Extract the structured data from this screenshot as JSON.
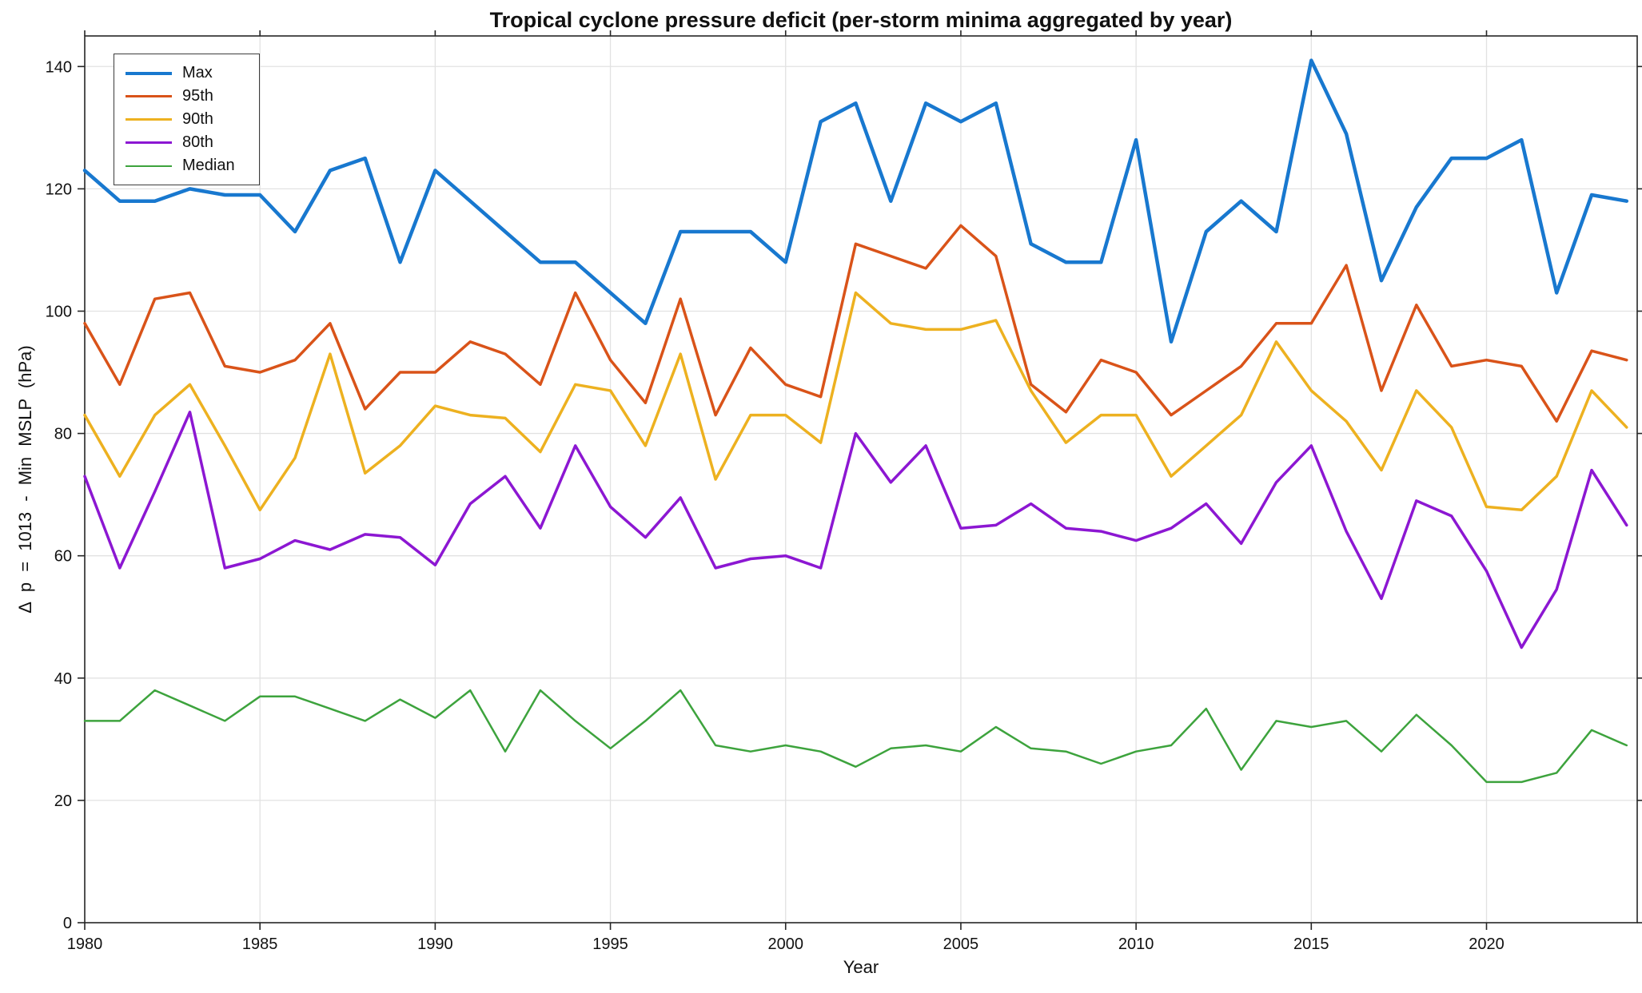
{
  "chart_data": {
    "type": "line",
    "title": "Tropical cyclone pressure deficit (per-storm minima aggregated by year)",
    "xlabel": "Year",
    "ylabel": "Δ p = 1013 - Min MSLP (hPa)",
    "xlim": [
      1980,
      2024.3
    ],
    "ylim": [
      0,
      145
    ],
    "xticks": [
      1980,
      1985,
      1990,
      1995,
      2000,
      2005,
      2010,
      2015,
      2020
    ],
    "yticks": [
      0,
      20,
      40,
      60,
      80,
      100,
      120,
      140
    ],
    "grid": true,
    "legend_position": "top-left",
    "grid_color": "#e2e2e2",
    "axis_color": "#262626",
    "x": [
      1980,
      1981,
      1982,
      1983,
      1984,
      1985,
      1986,
      1987,
      1988,
      1989,
      1990,
      1991,
      1992,
      1993,
      1994,
      1995,
      1996,
      1997,
      1998,
      1999,
      2000,
      2001,
      2002,
      2003,
      2004,
      2005,
      2006,
      2007,
      2008,
      2009,
      2010,
      2011,
      2012,
      2013,
      2014,
      2015,
      2016,
      2017,
      2018,
      2019,
      2020,
      2021,
      2022,
      2023,
      2024
    ],
    "series": [
      {
        "name": "Max",
        "color": "#1878cf",
        "line_width": 4.5,
        "values": [
          123,
          118,
          118,
          120,
          119,
          119,
          113,
          123,
          125,
          108,
          123,
          118,
          113,
          108,
          108,
          103,
          98,
          113,
          113,
          113,
          108,
          131,
          134,
          118,
          134,
          131,
          134,
          111,
          108,
          108,
          128,
          95,
          113,
          118,
          113,
          141,
          129,
          105,
          117,
          125,
          125,
          128,
          103,
          119,
          118
        ]
      },
      {
        "name": "95th",
        "color": "#d95319",
        "line_width": 3.5,
        "values": [
          98,
          88,
          102,
          103,
          91,
          90,
          92,
          98,
          84,
          90,
          90,
          95,
          93,
          88,
          103,
          92,
          85,
          102,
          83,
          94,
          88,
          86,
          111,
          109,
          107,
          114,
          109,
          88,
          83.5,
          92,
          90,
          83,
          87,
          91,
          98,
          98,
          107.5,
          87,
          101,
          91,
          92,
          91,
          82,
          93.5,
          92
        ]
      },
      {
        "name": "90th",
        "color": "#edb120",
        "line_width": 3.5,
        "values": [
          83,
          73,
          83,
          88,
          78,
          67.5,
          76,
          93,
          73.5,
          78,
          84.5,
          83,
          82.5,
          77,
          88,
          87,
          78,
          93,
          72.5,
          83,
          83,
          78.5,
          103,
          98,
          97,
          97,
          98.5,
          87,
          78.5,
          83,
          83,
          73,
          78,
          83,
          95,
          87,
          82,
          74,
          87,
          81,
          68,
          67.5,
          73,
          87,
          81
        ]
      },
      {
        "name": "80th",
        "color": "#8c17d2",
        "line_width": 3.5,
        "values": [
          73,
          58,
          70.5,
          83.5,
          58,
          59.5,
          62.5,
          61,
          63.5,
          63,
          58.5,
          68.5,
          73,
          64.5,
          78,
          68,
          63,
          69.5,
          58,
          59.5,
          60,
          58,
          80,
          72,
          78,
          64.5,
          65,
          68.5,
          64.5,
          64,
          62.5,
          64.5,
          68.5,
          62,
          72,
          78,
          64,
          53,
          69,
          66.5,
          57.5,
          45,
          54.5,
          74,
          65
        ]
      },
      {
        "name": "Median",
        "color": "#3da33d",
        "line_width": 2.5,
        "values": [
          33,
          33,
          38,
          35.5,
          33,
          37,
          37,
          35,
          33,
          36.5,
          33.5,
          38,
          28,
          38,
          33,
          28.5,
          33,
          38,
          29,
          28,
          29,
          28,
          25.5,
          28.5,
          29,
          28,
          32,
          28.5,
          28,
          26,
          28,
          29,
          35,
          25,
          33,
          32,
          33,
          28,
          34,
          29,
          23,
          23,
          24.5,
          31.5,
          29
        ]
      }
    ]
  }
}
